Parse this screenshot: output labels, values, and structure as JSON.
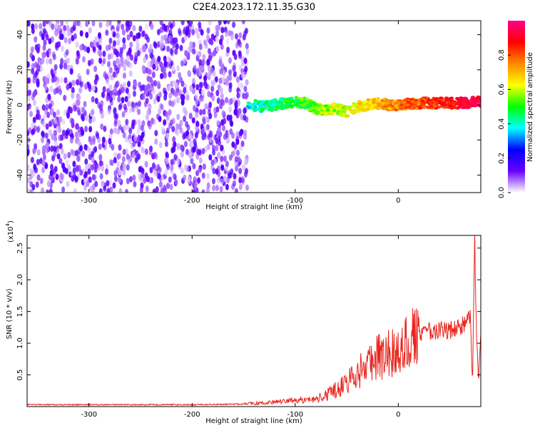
{
  "title": "C2E4.2023.172.11.35.G30",
  "chart_data": [
    {
      "type": "heatmap",
      "xlabel": "Height of straight line (km)",
      "ylabel": "Frequency (Hz)",
      "xlim": [
        -360,
        80
      ],
      "ylim": [
        -50,
        48
      ],
      "xticks": [
        -300,
        -200,
        -100,
        0
      ],
      "yticks": [
        -40,
        -20,
        0,
        20,
        40
      ],
      "colorbar": {
        "label": "Normalized spectral amplitude",
        "range": [
          0,
          1
        ],
        "ticks": [
          "0.0",
          "0.2",
          "0.4",
          "0.6",
          "0.8"
        ],
        "colormap": [
          "#ffffff",
          "#6a00ff",
          "#0000ff",
          "#00ffff",
          "#00ff00",
          "#ffff00",
          "#ff8800",
          "#ff0000",
          "#ff0088"
        ]
      },
      "regions": [
        {
          "name": "noise",
          "x": [
            -360,
            -146
          ],
          "freq": [
            -50,
            48
          ],
          "amplitude": [
            0.0,
            0.25
          ]
        },
        {
          "name": "signal",
          "x": [
            -146,
            80
          ],
          "freq": [
            -8,
            8
          ],
          "amplitude": [
            0.3,
            0.95
          ]
        }
      ],
      "signal_trace": {
        "x": [
          -146,
          -130,
          -110,
          -100,
          -90,
          -80,
          -70,
          -60,
          -50,
          -40,
          -30,
          -20,
          -10,
          0,
          20,
          40,
          60,
          80
        ],
        "freq": [
          0,
          -1,
          1,
          2,
          1,
          -2,
          -3,
          -2,
          -4,
          -1,
          0,
          1,
          0,
          0,
          1,
          1,
          1,
          2
        ]
      }
    },
    {
      "type": "line",
      "xlabel": "Height of straight line (km)",
      "ylabel": "SNR (10 * v/v)",
      "yscale_label": "(x10",
      "yscale_exponent": "4",
      "xlim": [
        -360,
        80
      ],
      "ylim": [
        0,
        2.7
      ],
      "xticks": [
        -300,
        -200,
        -100,
        0
      ],
      "yticks": [
        0.5,
        1.0,
        1.5,
        2.0,
        2.5
      ],
      "ytick_labels": [
        "0.5",
        "1.0",
        "1.5",
        "2.0",
        "2.5"
      ],
      "color": "#e8231c",
      "series": [
        {
          "x": [
            -360,
            -300,
            -250,
            -200,
            -150,
            -130,
            -110,
            -100,
            -80,
            -70,
            -60,
            -50,
            -40,
            -30,
            -20,
            -10,
            0,
            10,
            20,
            30,
            40,
            50,
            60,
            65,
            70,
            72,
            74,
            76,
            78,
            80
          ],
          "values": [
            0.03,
            0.03,
            0.03,
            0.03,
            0.04,
            0.06,
            0.08,
            0.1,
            0.12,
            0.18,
            0.28,
            0.38,
            0.5,
            0.68,
            0.8,
            0.85,
            0.9,
            1.05,
            1.12,
            1.18,
            1.2,
            1.2,
            1.25,
            1.3,
            1.4,
            0.3,
            2.7,
            1.0,
            0.4,
            1.3
          ]
        }
      ]
    }
  ]
}
